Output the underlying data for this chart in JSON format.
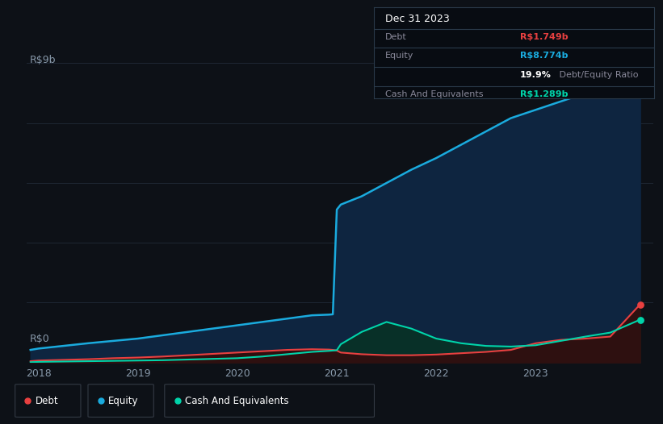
{
  "bg_color": "#0d1117",
  "grid_color": "#1e2733",
  "axis_label_color": "#8899aa",
  "ylabel_text": "R$9b",
  "y0_text": "R$0",
  "years": [
    2017.92,
    2018.0,
    2018.25,
    2018.5,
    2018.75,
    2019.0,
    2019.25,
    2019.5,
    2019.75,
    2020.0,
    2020.25,
    2020.5,
    2020.75,
    2020.92,
    2020.96,
    2021.0,
    2021.04,
    2021.25,
    2021.5,
    2021.75,
    2022.0,
    2022.25,
    2022.5,
    2022.75,
    2023.0,
    2023.25,
    2023.5,
    2023.75,
    2024.05
  ],
  "equity": [
    0.38,
    0.42,
    0.5,
    0.58,
    0.65,
    0.72,
    0.82,
    0.92,
    1.02,
    1.12,
    1.22,
    1.32,
    1.42,
    1.44,
    1.45,
    4.6,
    4.75,
    5.0,
    5.4,
    5.8,
    6.15,
    6.55,
    6.95,
    7.35,
    7.6,
    7.85,
    8.1,
    8.45,
    8.774
  ],
  "debt": [
    0.04,
    0.06,
    0.08,
    0.1,
    0.13,
    0.15,
    0.18,
    0.22,
    0.26,
    0.3,
    0.34,
    0.38,
    0.4,
    0.39,
    0.38,
    0.36,
    0.3,
    0.25,
    0.22,
    0.22,
    0.24,
    0.28,
    0.32,
    0.38,
    0.58,
    0.68,
    0.72,
    0.78,
    1.749
  ],
  "cash": [
    0.01,
    0.02,
    0.03,
    0.04,
    0.05,
    0.06,
    0.07,
    0.09,
    0.11,
    0.13,
    0.18,
    0.25,
    0.32,
    0.35,
    0.36,
    0.37,
    0.55,
    0.92,
    1.22,
    1.02,
    0.72,
    0.58,
    0.5,
    0.48,
    0.52,
    0.65,
    0.78,
    0.9,
    1.289
  ],
  "equity_color": "#1aabde",
  "debt_color": "#e84040",
  "cash_color": "#00d4aa",
  "equity_fill": "#0e2540",
  "debt_fill": "#2e1010",
  "cash_fill": "#083028",
  "ylim": [
    0,
    9.5
  ],
  "xlim": [
    2017.88,
    2024.18
  ],
  "xticks": [
    2018,
    2019,
    2020,
    2021,
    2022,
    2023
  ],
  "grid_levels": [
    0,
    1.8,
    3.6,
    5.4,
    7.2,
    9.0
  ],
  "info_box_title": "Dec 31 2023",
  "info_debt_label": "Debt",
  "info_debt_value": "R$1.749b",
  "info_equity_label": "Equity",
  "info_equity_value": "R$8.774b",
  "info_ratio_pct": "19.9%",
  "info_ratio_text": " Debt/Equity Ratio",
  "info_cash_label": "Cash And Equivalents",
  "info_cash_value": "R$1.289b",
  "legend_items": [
    {
      "label": "Debt",
      "color": "#e84040"
    },
    {
      "label": "Equity",
      "color": "#1aabde"
    },
    {
      "label": "Cash And Equivalents",
      "color": "#00d4aa"
    }
  ]
}
